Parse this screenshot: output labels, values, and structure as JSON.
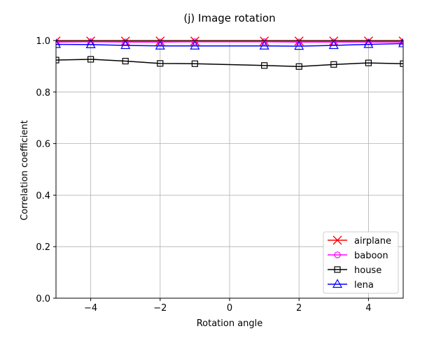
{
  "chart_data": {
    "type": "line",
    "title": "(j) Image rotation",
    "xlabel": "Rotation angle",
    "ylabel": "Correlation coefficient",
    "xlim": [
      -5,
      5
    ],
    "ylim": [
      0,
      1.0
    ],
    "grid": true,
    "legend_position": "lower-right",
    "x": [
      -5,
      -4,
      -3,
      -2,
      -1,
      1,
      2,
      3,
      4,
      5
    ],
    "xticks": [
      -4,
      -2,
      0,
      2,
      4
    ],
    "xtick_labels": [
      "−4",
      "−2",
      "0",
      "2",
      "4"
    ],
    "yticks": [
      0.0,
      0.2,
      0.4,
      0.6,
      0.8,
      1.0
    ],
    "ytick_labels": [
      "0.0",
      "0.2",
      "0.4",
      "0.6",
      "0.8",
      "1.0"
    ],
    "series": [
      {
        "name": "airplane",
        "color": "#ff0000",
        "marker": "x",
        "values": [
          0.998,
          0.998,
          0.998,
          0.998,
          0.998,
          0.998,
          0.998,
          0.998,
          0.998,
          0.998
        ]
      },
      {
        "name": "baboon",
        "color": "#ff00ff",
        "marker": "circle",
        "values": [
          0.994,
          0.995,
          0.994,
          0.994,
          0.995,
          0.995,
          0.994,
          0.994,
          0.994,
          0.994
        ]
      },
      {
        "name": "house",
        "color": "#000000",
        "marker": "square",
        "values": [
          0.924,
          0.927,
          0.92,
          0.911,
          0.91,
          0.903,
          0.899,
          0.907,
          0.913,
          0.91
        ]
      },
      {
        "name": "lena",
        "color": "#0000ff",
        "marker": "triangle",
        "values": [
          0.985,
          0.984,
          0.981,
          0.979,
          0.979,
          0.979,
          0.978,
          0.981,
          0.985,
          0.988
        ]
      }
    ]
  }
}
